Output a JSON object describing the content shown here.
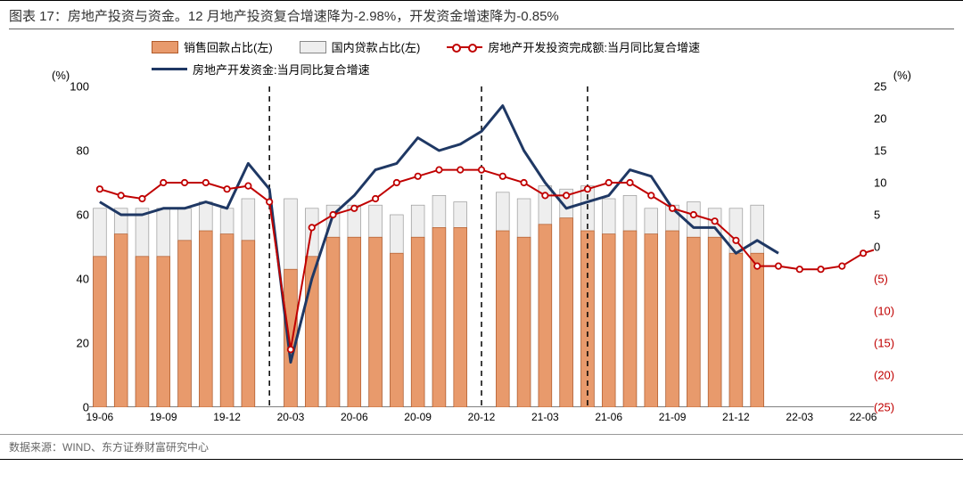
{
  "title": "图表 17：房地产投资与资金。12 月地产投资复合增速降为-2.98%，开发资金增速降为-0.85%",
  "source": "数据来源：WIND、东方证券财富研究中心",
  "axis_left_title": "(%)",
  "axis_right_title": "(%)",
  "legend": {
    "bar1": "销售回款占比(左)",
    "bar2": "国内贷款占比(左)",
    "line1": "房地产开发投资完成额:当月同比复合增速",
    "line2": "房地产开发资金:当月同比复合增速"
  },
  "chart": {
    "type": "bar+line dual-axis",
    "colors": {
      "bar_sales": "#e89a6c",
      "bar_sales_border": "#b05a2a",
      "bar_loan": "#eeeeee",
      "bar_loan_border": "#999999",
      "line_red": "#c00000",
      "line_blue": "#1f3864",
      "dashed": "#000000",
      "axis": "#000000",
      "grid": "none",
      "bg": "#ffffff"
    },
    "left_axis": {
      "min": 0,
      "max": 100,
      "ticks": [
        0,
        20,
        40,
        60,
        80,
        100
      ]
    },
    "right_axis": {
      "min": -25,
      "max": 25,
      "ticks": [
        25,
        20,
        15,
        10,
        5,
        0,
        -5,
        -10,
        -15,
        -20,
        -25
      ],
      "neg_fmt": "paren"
    },
    "x_labels": [
      "19-06",
      "19-09",
      "19-12",
      "20-03",
      "20-06",
      "20-09",
      "20-12",
      "21-03",
      "21-06",
      "21-09",
      "21-12",
      "22-03",
      "22-06"
    ],
    "x_tick_indices": [
      0,
      3,
      6,
      9,
      12,
      15,
      18,
      21,
      24,
      27,
      30,
      33,
      36
    ],
    "n_slots": 37,
    "bar_span": 32,
    "bars_sales": [
      47,
      54,
      47,
      47,
      52,
      55,
      54,
      52,
      null,
      43,
      47,
      53,
      53,
      53,
      48,
      53,
      56,
      56,
      null,
      55,
      53,
      57,
      59,
      55,
      54,
      55,
      54,
      55,
      53,
      53,
      48,
      48
    ],
    "bars_loan": [
      62,
      62,
      62,
      62,
      62,
      64,
      62,
      65,
      null,
      65,
      62,
      63,
      63,
      63,
      60,
      63,
      66,
      64,
      null,
      67,
      65,
      69,
      68,
      69,
      65,
      66,
      62,
      63,
      64,
      62,
      62,
      63
    ],
    "line_red": [
      9,
      8,
      7.5,
      10,
      10,
      10,
      9,
      9.5,
      7,
      -16,
      3,
      5,
      6,
      7.5,
      10,
      11,
      12,
      12,
      12,
      11,
      10,
      8,
      8,
      9,
      10,
      10,
      8,
      6,
      5,
      4,
      1,
      -3,
      -3,
      -3.5,
      -3.5,
      -3,
      -1,
      0
    ],
    "line_blue": [
      7,
      5,
      5,
      6,
      6,
      7,
      6,
      13,
      9,
      -18,
      -5,
      5,
      8,
      12,
      13,
      17,
      15,
      16,
      18,
      22,
      15,
      10,
      6,
      7,
      8,
      12,
      11,
      6,
      3,
      3,
      -1,
      1,
      -1
    ],
    "dashed_x": [
      8,
      18,
      23
    ],
    "bar_width_ratio": 0.62
  }
}
